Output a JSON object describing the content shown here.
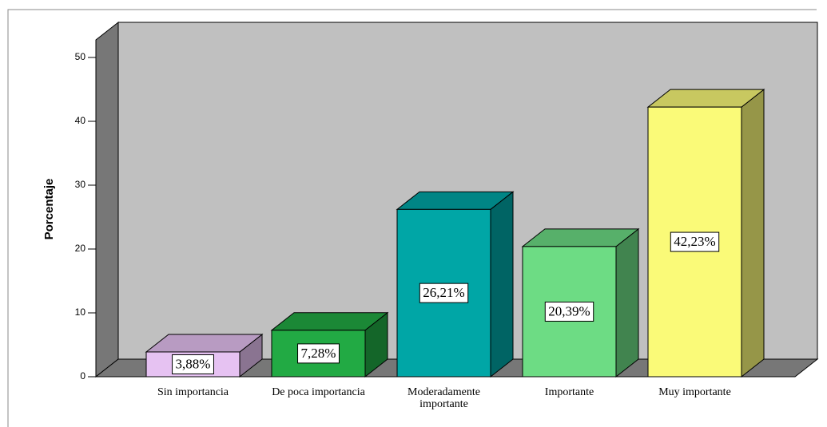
{
  "chart_data": {
    "type": "bar3d",
    "y_label": "Porcentaje",
    "categories": [
      "Sin importancia",
      "De poca importancia",
      "Moderadamente importante",
      "Importante",
      "Muy importante"
    ],
    "values": [
      3.88,
      7.28,
      26.21,
      20.39,
      42.23
    ],
    "value_labels": [
      "3,88%",
      "7,28%",
      "26,21%",
      "20,39%",
      "42,23%"
    ],
    "colors": [
      "#e6c2f2",
      "#22aa44",
      "#00a6a6",
      "#6ddc84",
      "#fafa78"
    ],
    "ylim": [
      0,
      52.75
    ],
    "yticks": [
      0,
      10,
      20,
      30,
      40,
      50
    ]
  }
}
